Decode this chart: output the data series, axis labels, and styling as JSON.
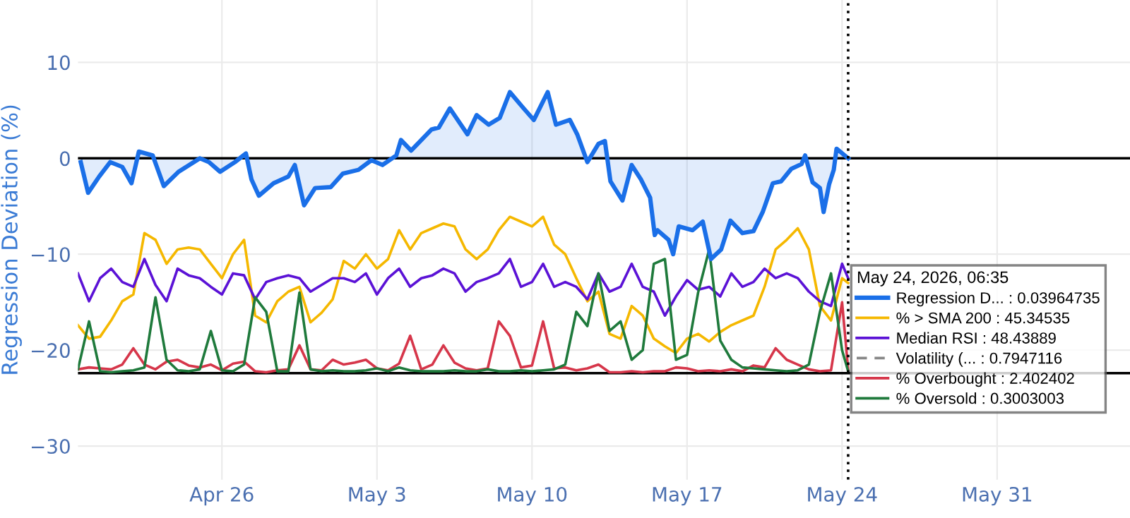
{
  "chart_data": {
    "type": "line",
    "ylabel": "Regression Deviation (%)",
    "legend_title": "May 24, 2026, 06:35",
    "xlim": [
      "2026-04-19T12:00",
      "2026-06-06T00:00"
    ],
    "xticks": [
      {
        "value": "2026-04-26",
        "label": "Apr 26"
      },
      {
        "value": "2026-05-03",
        "label": "May 3"
      },
      {
        "value": "2026-05-10",
        "label": "May 10"
      },
      {
        "value": "2026-05-17",
        "label": "May 17"
      },
      {
        "value": "2026-05-24",
        "label": "May 24"
      },
      {
        "value": "2026-05-31",
        "label": "May 31"
      }
    ],
    "ylim": [
      -33.5,
      16.5
    ],
    "yticks": [
      {
        "value": -30,
        "label": "−30"
      },
      {
        "value": -20,
        "label": "−20"
      },
      {
        "value": -10,
        "label": "−10"
      },
      0,
      10
    ],
    "grid": true,
    "legend": "right",
    "ref_lines": [
      {
        "axis": "y",
        "value": 0,
        "color": "#000000",
        "line_style": "solid"
      },
      {
        "axis": "y",
        "value": -22.4,
        "color": "#000000",
        "line_style": "solid"
      },
      {
        "axis": "x",
        "value": "2026-05-24T06:35",
        "color": "#000000",
        "line_style": "dotted"
      }
    ],
    "x": [
      "2026-04-19T12:00",
      "2026-04-20T00:00",
      "2026-04-20T12:00",
      "2026-04-21T00:00",
      "2026-04-21T12:00",
      "2026-04-22T00:00",
      "2026-04-22T12:00",
      "2026-04-23T00:00",
      "2026-04-23T12:00",
      "2026-04-24T00:00",
      "2026-04-24T12:00",
      "2026-04-25T00:00",
      "2026-04-25T12:00",
      "2026-04-26T00:00",
      "2026-04-26T12:00",
      "2026-04-27T00:00",
      "2026-04-27T12:00",
      "2026-04-28T00:00",
      "2026-04-28T12:00",
      "2026-04-29T00:00",
      "2026-04-29T12:00",
      "2026-04-30T00:00",
      "2026-04-30T12:00",
      "2026-05-01T00:00",
      "2026-05-01T12:00",
      "2026-05-02T00:00",
      "2026-05-02T12:00",
      "2026-05-03T00:00",
      "2026-05-03T12:00",
      "2026-05-04T00:00",
      "2026-05-04T12:00",
      "2026-05-05T00:00",
      "2026-05-05T12:00",
      "2026-05-06T00:00",
      "2026-05-06T12:00",
      "2026-05-07T00:00",
      "2026-05-07T12:00",
      "2026-05-08T00:00",
      "2026-05-08T12:00",
      "2026-05-09T00:00",
      "2026-05-09T12:00",
      "2026-05-10T00:00",
      "2026-05-10T12:00",
      "2026-05-11T00:00",
      "2026-05-11T12:00",
      "2026-05-12T00:00",
      "2026-05-12T12:00",
      "2026-05-13T00:00",
      "2026-05-13T12:00",
      "2026-05-14T00:00",
      "2026-05-14T12:00",
      "2026-05-15T00:00",
      "2026-05-15T12:00",
      "2026-05-16T00:00",
      "2026-05-16T12:00",
      "2026-05-17T00:00",
      "2026-05-17T12:00",
      "2026-05-18T00:00",
      "2026-05-18T12:00",
      "2026-05-19T00:00",
      "2026-05-19T12:00",
      "2026-05-20T00:00",
      "2026-05-20T12:00",
      "2026-05-21T00:00",
      "2026-05-21T12:00",
      "2026-05-22T00:00",
      "2026-05-22T12:00",
      "2026-05-23T00:00",
      "2026-05-23T12:00",
      "2026-05-24T00:00",
      "2026-05-24T06:35"
    ],
    "series": [
      {
        "name": "Regression D... : 0.03964735",
        "type": "area",
        "color": "#1a6fe8",
        "x": [
          "2026-04-19T15:00",
          "2026-04-19T23:00",
          "2026-04-20T11:00",
          "2026-04-20T23:00",
          "2026-04-21T12:00",
          "2026-04-21T22:00",
          "2026-04-22T06:00",
          "2026-04-22T21:00",
          "2026-04-23T09:00",
          "2026-04-24T01:00",
          "2026-04-25T00:00",
          "2026-04-25T10:00",
          "2026-04-25T22:00",
          "2026-04-26T14:00",
          "2026-04-27T02:00",
          "2026-04-27T08:00",
          "2026-04-27T16:00",
          "2026-04-28T08:00",
          "2026-04-29T00:00",
          "2026-04-29T07:00",
          "2026-04-29T17:00",
          "2026-04-30T05:00",
          "2026-04-30T22:00",
          "2026-05-01T11:00",
          "2026-05-02T04:00",
          "2026-05-02T18:00",
          "2026-05-03T06:00",
          "2026-05-03T21:00",
          "2026-05-04T02:00",
          "2026-05-04T13:00",
          "2026-05-04T23:00",
          "2026-05-05T11:00",
          "2026-05-05T19:00",
          "2026-05-06T07:00",
          "2026-05-07T02:00",
          "2026-05-07T12:00",
          "2026-05-08T01:00",
          "2026-05-08T13:00",
          "2026-05-09T00:00",
          "2026-05-09T15:00",
          "2026-05-10T02:00",
          "2026-05-10T17:00",
          "2026-05-11T02:00",
          "2026-05-11T17:00",
          "2026-05-12T01:00",
          "2026-05-12T12:00",
          "2026-05-13T00:00",
          "2026-05-13T07:00",
          "2026-05-13T13:00",
          "2026-05-14T02:00",
          "2026-05-14T12:00",
          "2026-05-14T22:00",
          "2026-05-15T08:00",
          "2026-05-15T13:00",
          "2026-05-15T16:00",
          "2026-05-16T04:00",
          "2026-05-16T09:00",
          "2026-05-16T15:00",
          "2026-05-17T06:00",
          "2026-05-17T17:00",
          "2026-05-18T02:00",
          "2026-05-18T13:00",
          "2026-05-18T23:00",
          "2026-05-19T12:00",
          "2026-05-20T00:00",
          "2026-05-20T10:00",
          "2026-05-20T21:00",
          "2026-05-21T06:00",
          "2026-05-21T17:00",
          "2026-05-22T04:00",
          "2026-05-22T08:00",
          "2026-05-22T16:00",
          "2026-05-23T00:00",
          "2026-05-23T04:00",
          "2026-05-23T10:00",
          "2026-05-23T15:00",
          "2026-05-23T18:00",
          "2026-05-24T06:35"
        ],
        "values": [
          -0.4,
          -3.6,
          -1.9,
          -0.4,
          -0.9,
          -2.6,
          0.7,
          0.3,
          -2.9,
          -1.4,
          0,
          -0.4,
          -1.4,
          -0.4,
          0.5,
          -2.2,
          -3.9,
          -2.6,
          -1.9,
          -0.7,
          -4.9,
          -3.1,
          -3.0,
          -1.6,
          -1.2,
          -0.2,
          -0.7,
          0.3,
          1.9,
          0.8,
          1.8,
          3.0,
          3.2,
          5.2,
          2.5,
          4.5,
          3.5,
          4.2,
          6.9,
          5.2,
          4.0,
          6.9,
          3.5,
          4.0,
          2.5,
          -0.4,
          1.5,
          1.8,
          -2.4,
          -4.4,
          -0.7,
          -2.2,
          -4.1,
          -8.0,
          -7.5,
          -8.5,
          -10.0,
          -7.1,
          -7.5,
          -6.6,
          -10.5,
          -9.5,
          -6.5,
          -7.8,
          -7.6,
          -5.6,
          -2.6,
          -2.4,
          -1.1,
          -0.6,
          0.3,
          -2.5,
          -3.1,
          -5.6,
          -2.7,
          -1.2,
          1.0,
          0.0
        ]
      },
      {
        "name": "% > SMA 200 : 45.34535",
        "color": "#f5b800",
        "values": [
          -17.4,
          -18.8,
          -18.6,
          -16.9,
          -14.9,
          -14.2,
          -7.8,
          -8.5,
          -11.0,
          -9.5,
          -9.3,
          -9.5,
          -11.0,
          -12.5,
          -10.0,
          -8.5,
          -16.4,
          -17.1,
          -14.9,
          -13.9,
          -13.4,
          -17.1,
          -16.1,
          -14.7,
          -10.7,
          -11.5,
          -10.0,
          -11.5,
          -10.5,
          -7.5,
          -9.5,
          -7.8,
          -7.3,
          -6.8,
          -7.1,
          -9.5,
          -10.5,
          -9.5,
          -7.5,
          -6.1,
          -6.6,
          -7.1,
          -6.1,
          -9.0,
          -10.0,
          -12.5,
          -14.9,
          -13.9,
          -18.3,
          -18.8,
          -15.4,
          -16.4,
          -18.8,
          -19.6,
          -20.3,
          -18.8,
          -18.3,
          -19.1,
          -18.1,
          -17.4,
          -16.9,
          -16.4,
          -13.4,
          -9.5,
          -8.5,
          -7.3,
          -9.5,
          -15.4,
          -16.9,
          -12.5,
          -13.0
        ]
      },
      {
        "name": "Median RSI : 48.43889",
        "color": "#5b12d6",
        "values": [
          -12.0,
          -14.9,
          -12.5,
          -11.5,
          -12.9,
          -13.4,
          -10.5,
          -13.2,
          -14.9,
          -11.5,
          -12.2,
          -12.5,
          -13.4,
          -14.2,
          -12.0,
          -12.2,
          -14.7,
          -12.9,
          -12.5,
          -12.2,
          -12.5,
          -13.9,
          -13.2,
          -12.5,
          -12.5,
          -12.9,
          -12.0,
          -14.2,
          -12.5,
          -11.5,
          -13.4,
          -12.5,
          -12.2,
          -11.5,
          -12.0,
          -13.9,
          -12.9,
          -12.5,
          -12.0,
          -10.5,
          -13.4,
          -12.9,
          -11.0,
          -13.4,
          -12.9,
          -13.4,
          -14.7,
          -12.0,
          -13.9,
          -13.4,
          -11.0,
          -13.4,
          -13.9,
          -16.4,
          -14.4,
          -12.7,
          -13.7,
          -13.4,
          -14.4,
          -12.0,
          -13.4,
          -12.9,
          -11.5,
          -12.5,
          -12.0,
          -12.5,
          -13.9,
          -14.9,
          -15.4,
          -11.0,
          -12.5
        ]
      },
      {
        "name": "Volatility (... : 0.7947116",
        "color": "#888888",
        "line_style": "dashed",
        "values": [
          null,
          null,
          null,
          null,
          null,
          null,
          null,
          null,
          null,
          null,
          null,
          null,
          null,
          null,
          null,
          null,
          null,
          null,
          null,
          null,
          null,
          null,
          null,
          null,
          null,
          null,
          null,
          null,
          null,
          null,
          null,
          null,
          null,
          null,
          null,
          null,
          null,
          null,
          null,
          null,
          null,
          null,
          null,
          null,
          null,
          null,
          null,
          null,
          null,
          null,
          null,
          null,
          null,
          null,
          null,
          null,
          null,
          null,
          null,
          null,
          null,
          null,
          null,
          null,
          null,
          null,
          null,
          null,
          null,
          null,
          null
        ]
      },
      {
        "name": "% Overbought : 2.402402",
        "color": "#d6364a",
        "values": [
          -22.0,
          -21.8,
          -21.9,
          -22.0,
          -21.5,
          -19.8,
          -21.5,
          -22.0,
          -21.2,
          -21.0,
          -21.6,
          -21.8,
          -21.5,
          -22.1,
          -21.4,
          -21.2,
          -22.2,
          -22.3,
          -22.1,
          -22.0,
          -19.5,
          -22.0,
          -22.1,
          -21.0,
          -21.5,
          -21.3,
          -21.0,
          -21.9,
          -22.1,
          -21.4,
          -18.5,
          -22.0,
          -21.5,
          -19.5,
          -21.3,
          -21.9,
          -22.1,
          -21.9,
          -17.0,
          -18.5,
          -21.8,
          -21.6,
          -17.0,
          -21.9,
          -21.8,
          -22.1,
          -21.9,
          -21.5,
          -22.3,
          -22.3,
          -22.2,
          -22.3,
          -22.2,
          -22.2,
          -21.8,
          -21.9,
          -22.2,
          -22.1,
          -22.2,
          -22.0,
          -22.2,
          -21.6,
          -21.8,
          -19.8,
          -21.0,
          -21.5,
          -22.0,
          -22.2,
          -22.1,
          -15.0,
          -22.0
        ]
      },
      {
        "name": "% Oversold : 0.3003003",
        "color": "#1f7a3c",
        "values": [
          -22.0,
          -17.0,
          -22.2,
          -22.3,
          -22.2,
          -22.1,
          -21.8,
          -14.5,
          -21.0,
          -22.1,
          -22.2,
          -22.0,
          -18.0,
          -22.1,
          -22.2,
          -21.5,
          -14.5,
          -16.0,
          -22.2,
          -22.2,
          -14.0,
          -22.0,
          -22.2,
          -22.1,
          -22.2,
          -22.2,
          -22.1,
          -21.9,
          -22.2,
          -21.8,
          -22.1,
          -22.2,
          -22.2,
          -22.2,
          -22.1,
          -22.2,
          -22.2,
          -22.0,
          -22.2,
          -22.2,
          -22.1,
          -22.2,
          -22.1,
          -22.0,
          -21.5,
          -16.0,
          -17.5,
          -12.0,
          -18.0,
          -17.0,
          -21.0,
          -20.0,
          -11.0,
          -10.5,
          -21.0,
          -20.5,
          -14.0,
          -9.5,
          -19.0,
          -21.0,
          -21.8,
          -21.9,
          -22.0,
          -22.1,
          -22.2,
          -22.1,
          -21.5,
          -16.0,
          -12.0,
          -20.0,
          -22.2
        ]
      }
    ]
  }
}
